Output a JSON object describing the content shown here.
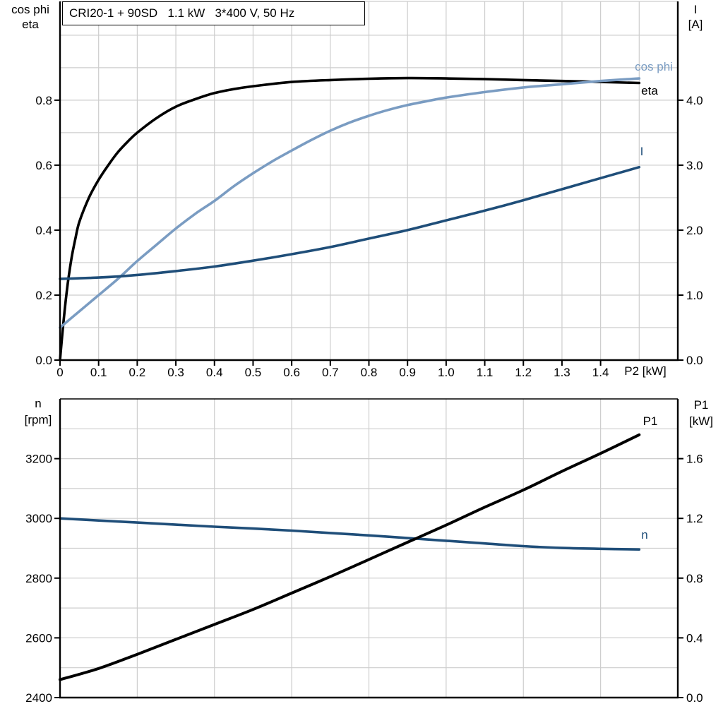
{
  "title": "CRI20-1 + 90SD   1.1 kW   3*400 V, 50 Hz",
  "colors": {
    "black": "#000000",
    "light_blue": "#7A9CC2",
    "dark_blue": "#1F4E79",
    "grid": "#CDCDCD",
    "background": "#FFFFFF"
  },
  "chart_data": [
    {
      "type": "line",
      "title": "CRI20-1 + 90SD   1.1 kW   3*400 V, 50 Hz",
      "grid": true,
      "x_axis": {
        "label": "P2 [kW]",
        "range": [
          0,
          1.6
        ],
        "tick_values": [
          0,
          0.1,
          0.2,
          0.3,
          0.4,
          0.5,
          0.6,
          0.7,
          0.8,
          0.9,
          1.0,
          1.1,
          1.2,
          1.3,
          1.4
        ],
        "tick_labels": [
          "0",
          "0.1",
          "0.2",
          "0.3",
          "0.4",
          "0.5",
          "0.6",
          "0.7",
          "0.8",
          "0.9",
          "1.0",
          "1.1",
          "1.2",
          "1.3",
          "1.4"
        ],
        "grid_values": [
          0.1,
          0.2,
          0.3,
          0.4,
          0.5,
          0.6,
          0.7,
          0.8,
          0.9,
          1.0,
          1.1,
          1.2,
          1.3,
          1.4,
          1.5
        ]
      },
      "left_axis": {
        "title_line1": "cos phi",
        "title_line2": "eta",
        "range": [
          0,
          1.104
        ],
        "tick_values": [
          0,
          0.2,
          0.4,
          0.6,
          0.8
        ],
        "tick_labels": [
          "0.0",
          "0.2",
          "0.4",
          "0.6",
          "0.8"
        ],
        "grid_values": [
          0.1,
          0.2,
          0.3,
          0.4,
          0.5,
          0.6,
          0.7,
          0.8,
          0.9,
          1.0
        ]
      },
      "right_axis": {
        "title_line1": "I",
        "title_line2": "[A]",
        "range": [
          0,
          5.52
        ],
        "tick_values": [
          0,
          1,
          2,
          3,
          4
        ],
        "tick_labels": [
          "0.0",
          "1.0",
          "2.0",
          "3.0",
          "4.0"
        ]
      },
      "series": [
        {
          "name": "eta",
          "label": "eta",
          "axis": "left",
          "color": "black",
          "width": 3.6,
          "points": [
            [
              0,
              0
            ],
            [
              0.01,
              0.13
            ],
            [
              0.02,
              0.235
            ],
            [
              0.03,
              0.315
            ],
            [
              0.04,
              0.375
            ],
            [
              0.05,
              0.425
            ],
            [
              0.075,
              0.5
            ],
            [
              0.1,
              0.555
            ],
            [
              0.125,
              0.6
            ],
            [
              0.15,
              0.64
            ],
            [
              0.175,
              0.672
            ],
            [
              0.2,
              0.7
            ],
            [
              0.25,
              0.745
            ],
            [
              0.3,
              0.78
            ],
            [
              0.35,
              0.803
            ],
            [
              0.4,
              0.822
            ],
            [
              0.45,
              0.834
            ],
            [
              0.5,
              0.843
            ],
            [
              0.6,
              0.856
            ],
            [
              0.7,
              0.862
            ],
            [
              0.8,
              0.866
            ],
            [
              0.9,
              0.868
            ],
            [
              1.0,
              0.867
            ],
            [
              1.1,
              0.865
            ],
            [
              1.2,
              0.862
            ],
            [
              1.3,
              0.859
            ],
            [
              1.4,
              0.856
            ],
            [
              1.5,
              0.853
            ]
          ]
        },
        {
          "name": "cos phi",
          "label": "cos phi",
          "axis": "left",
          "color": "light_blue",
          "width": 3.6,
          "points": [
            [
              0,
              0.1
            ],
            [
              0.05,
              0.15
            ],
            [
              0.1,
              0.2
            ],
            [
              0.15,
              0.25
            ],
            [
              0.2,
              0.305
            ],
            [
              0.25,
              0.355
            ],
            [
              0.3,
              0.405
            ],
            [
              0.35,
              0.45
            ],
            [
              0.4,
              0.49
            ],
            [
              0.45,
              0.535
            ],
            [
              0.5,
              0.575
            ],
            [
              0.55,
              0.612
            ],
            [
              0.6,
              0.645
            ],
            [
              0.65,
              0.677
            ],
            [
              0.7,
              0.706
            ],
            [
              0.75,
              0.731
            ],
            [
              0.8,
              0.752
            ],
            [
              0.85,
              0.77
            ],
            [
              0.9,
              0.785
            ],
            [
              0.95,
              0.797
            ],
            [
              1.0,
              0.808
            ],
            [
              1.1,
              0.825
            ],
            [
              1.2,
              0.839
            ],
            [
              1.3,
              0.849
            ],
            [
              1.4,
              0.859
            ],
            [
              1.5,
              0.867
            ]
          ]
        },
        {
          "name": "I",
          "label": "I",
          "axis": "right",
          "color": "dark_blue",
          "width": 3.6,
          "points": [
            [
              0,
              1.25
            ],
            [
              0.1,
              1.27
            ],
            [
              0.2,
              1.31
            ],
            [
              0.3,
              1.37
            ],
            [
              0.4,
              1.44
            ],
            [
              0.5,
              1.53
            ],
            [
              0.6,
              1.63
            ],
            [
              0.7,
              1.74
            ],
            [
              0.8,
              1.87
            ],
            [
              0.9,
              2.0
            ],
            [
              1.0,
              2.15
            ],
            [
              1.1,
              2.3
            ],
            [
              1.2,
              2.46
            ],
            [
              1.3,
              2.63
            ],
            [
              1.4,
              2.8
            ],
            [
              1.5,
              2.97
            ]
          ]
        }
      ]
    },
    {
      "type": "line",
      "title": "",
      "grid": true,
      "x_axis": {
        "label": "",
        "range": [
          0,
          1.6
        ],
        "tick_values": [],
        "tick_labels": [],
        "grid_values": [
          0.2,
          0.4,
          0.6,
          0.8,
          1.0,
          1.2,
          1.4
        ]
      },
      "left_axis": {
        "title_line1": "n",
        "title_line2": "[rpm]",
        "range": [
          2400,
          3400
        ],
        "tick_values": [
          2400,
          2600,
          2800,
          3000,
          3200
        ],
        "tick_labels": [
          "2400",
          "2600",
          "2800",
          "3000",
          "3200"
        ],
        "grid_values": [
          2500,
          2600,
          2700,
          2800,
          2900,
          3000,
          3100,
          3200,
          3300
        ]
      },
      "right_axis": {
        "title_line1": "P1",
        "title_line2": "[kW]",
        "range": [
          0,
          2.0
        ],
        "tick_values": [
          0,
          0.4,
          0.8,
          1.2,
          1.6
        ],
        "tick_labels": [
          "0.0",
          "0.4",
          "0.8",
          "1.2",
          "1.6"
        ]
      },
      "series": [
        {
          "name": "n",
          "label": "n",
          "axis": "left",
          "color": "dark_blue",
          "width": 3.6,
          "points": [
            [
              0,
              3000
            ],
            [
              0.1,
              2993
            ],
            [
              0.2,
              2986
            ],
            [
              0.3,
              2979
            ],
            [
              0.4,
              2972
            ],
            [
              0.5,
              2966
            ],
            [
              0.6,
              2959
            ],
            [
              0.7,
              2951
            ],
            [
              0.8,
              2943
            ],
            [
              0.9,
              2934
            ],
            [
              1.0,
              2925
            ],
            [
              1.1,
              2916
            ],
            [
              1.2,
              2907
            ],
            [
              1.3,
              2901
            ],
            [
              1.4,
              2898
            ],
            [
              1.5,
              2896
            ]
          ]
        },
        {
          "name": "P1",
          "label": "P1",
          "axis": "right",
          "color": "black",
          "width": 4,
          "points": [
            [
              0,
              0.12
            ],
            [
              0.1,
              0.195
            ],
            [
              0.2,
              0.29
            ],
            [
              0.3,
              0.39
            ],
            [
              0.4,
              0.49
            ],
            [
              0.5,
              0.59
            ],
            [
              0.6,
              0.7
            ],
            [
              0.7,
              0.81
            ],
            [
              0.8,
              0.925
            ],
            [
              0.9,
              1.04
            ],
            [
              1.0,
              1.155
            ],
            [
              1.1,
              1.275
            ],
            [
              1.2,
              1.39
            ],
            [
              1.3,
              1.515
            ],
            [
              1.4,
              1.635
            ],
            [
              1.5,
              1.76
            ]
          ]
        }
      ]
    }
  ]
}
